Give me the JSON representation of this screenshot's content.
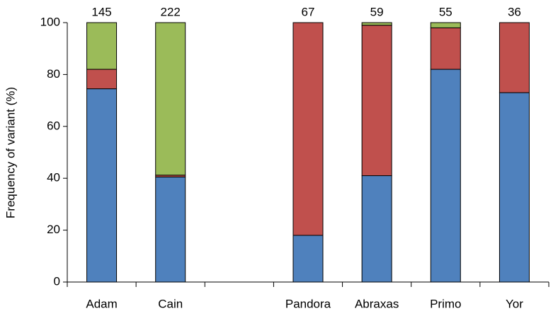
{
  "chart_data": {
    "type": "stacked_bar",
    "y_label": "Frequency of variant (%)",
    "categories": [
      "Adam",
      "Cain",
      null,
      "Pandora",
      "Abraxas",
      "Primo",
      "Yor"
    ],
    "series": [
      {
        "color": "#4f81bd",
        "values": [
          74.5,
          40.5,
          null,
          18,
          41,
          82,
          73
        ]
      },
      {
        "color": "#c0504d",
        "values": [
          7.5,
          0.7,
          null,
          82,
          58,
          16,
          27
        ]
      },
      {
        "color": "#9bbb59",
        "values": [
          18,
          58.8,
          null,
          0,
          1,
          2,
          0
        ]
      }
    ],
    "annotations": [
      145,
      222,
      null,
      67,
      59,
      55,
      36
    ],
    "ylim": [
      0,
      100
    ],
    "yticks": [
      0,
      20,
      40,
      60,
      80,
      100
    ],
    "grid": false
  }
}
